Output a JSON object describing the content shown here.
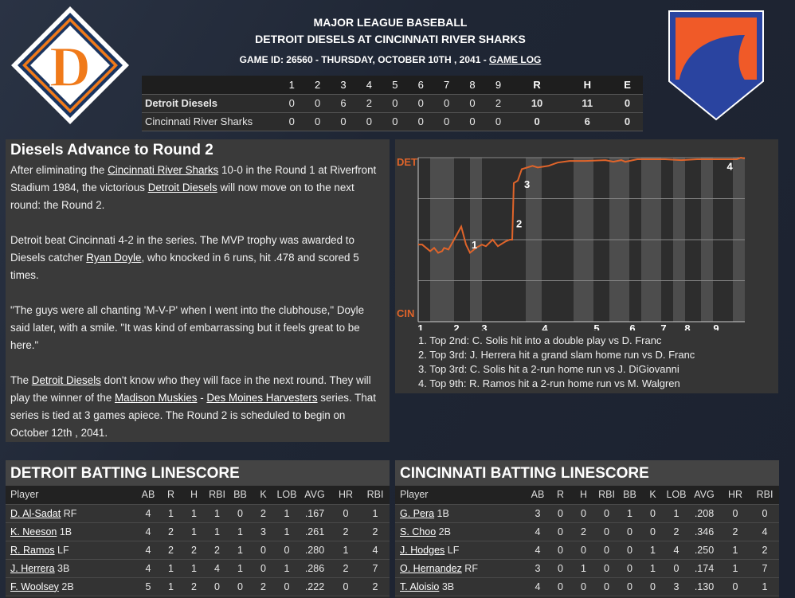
{
  "header": {
    "league": "MAJOR LEAGUE BASEBALL",
    "matchup": "DETROIT DIESELS AT CINCINNATI RIVER SHARKS",
    "game_info": "GAME ID: 26560 - THURSDAY, OCTOBER 10TH , 2041 - ",
    "game_log_link": "GAME LOG"
  },
  "logos": {
    "away": {
      "letter": "D",
      "colors": [
        "#f07a1a",
        "#1b3560",
        "#ffffff"
      ]
    },
    "home": {
      "colors": [
        "#f05a28",
        "#2a44a0",
        "#ffffff"
      ]
    }
  },
  "linescore": {
    "columns": [
      "1",
      "2",
      "3",
      "4",
      "5",
      "6",
      "7",
      "8",
      "9",
      "R",
      "H",
      "E"
    ],
    "rows": [
      {
        "team": "Detroit Diesels",
        "values": [
          "0",
          "0",
          "6",
          "2",
          "0",
          "0",
          "0",
          "0",
          "2",
          "10",
          "11",
          "0"
        ]
      },
      {
        "team": "Cincinnati River Sharks",
        "values": [
          "0",
          "0",
          "0",
          "0",
          "0",
          "0",
          "0",
          "0",
          "0",
          "0",
          "6",
          "0"
        ]
      }
    ]
  },
  "article": {
    "title": "Diesels Advance to Round 2",
    "paragraphs": [
      [
        {
          "text": "After eliminating the "
        },
        {
          "text": "Cincinnati River Sharks",
          "link": true
        },
        {
          "text": " 10-0 in the Round 1 at Riverfront Stadium 1984, the victorious "
        },
        {
          "text": "Detroit Diesels",
          "link": true
        },
        {
          "text": " will now move on to the next round: the Round 2."
        }
      ],
      [
        {
          "text": "Detroit beat Cincinnati 4-2 in the series. The MVP trophy was awarded to Diesels catcher "
        },
        {
          "text": "Ryan Doyle",
          "link": true
        },
        {
          "text": ", who knocked in 6 runs, hit .478 and scored 5 times."
        }
      ],
      [
        {
          "text": "\"The guys were all chanting 'M-V-P' when I went into the clubhouse,\" Doyle said later, with a smile. \"It was kind of embarrassing but it feels great to be here.\""
        }
      ],
      [
        {
          "text": "The "
        },
        {
          "text": "Detroit Diesels",
          "link": true
        },
        {
          "text": " don't know who they will face in the next round. They will play the winner of the "
        },
        {
          "text": "Madison Muskies",
          "link": true
        },
        {
          "text": " - "
        },
        {
          "text": "Des Moines Harvesters",
          "link": true
        },
        {
          "text": " series. That series is tied at 3 games apiece. The Round 2 is scheduled to begin on October 12th , 2041."
        }
      ]
    ]
  },
  "chart_data": {
    "type": "line",
    "top_label": "DET",
    "bottom_label": "CIN",
    "ylim": [
      0,
      1
    ],
    "xlim": [
      0,
      82
    ],
    "line_color": "#e0642a",
    "label_color": "#e0642a",
    "grid": true,
    "x_ticks": [
      {
        "label": "1",
        "x": 0.6
      },
      {
        "label": "2",
        "x": 9.6
      },
      {
        "label": "3",
        "x": 16.6
      },
      {
        "label": "4",
        "x": 31.8
      },
      {
        "label": "5",
        "x": 44.8
      },
      {
        "label": "6",
        "x": 53.8
      },
      {
        "label": "7",
        "x": 61.6
      },
      {
        "label": "8",
        "x": 67.6
      },
      {
        "label": "9",
        "x": 74.8
      }
    ],
    "series": [
      {
        "points": [
          [
            0,
            0.47
          ],
          [
            1,
            0.47
          ],
          [
            3,
            0.43
          ],
          [
            4,
            0.45
          ],
          [
            5,
            0.42
          ],
          [
            6,
            0.43
          ],
          [
            6.5,
            0.45
          ],
          [
            7.6,
            0.44
          ],
          [
            9,
            0.5
          ],
          [
            10.8,
            0.58
          ],
          [
            12,
            0.47
          ],
          [
            13,
            0.42
          ],
          [
            14.5,
            0.45
          ],
          [
            16,
            0.47
          ],
          [
            17,
            0.46
          ],
          [
            18.7,
            0.5
          ],
          [
            20,
            0.46
          ],
          [
            22,
            0.49
          ],
          [
            23,
            0.5
          ],
          [
            23.6,
            0.5
          ],
          [
            24,
            0.845
          ],
          [
            25,
            0.86
          ],
          [
            26,
            0.93
          ],
          [
            28.7,
            0.95
          ],
          [
            30,
            0.94
          ],
          [
            32.7,
            0.95
          ],
          [
            35,
            0.97
          ],
          [
            38,
            0.98
          ],
          [
            42,
            0.98
          ],
          [
            47,
            0.985
          ],
          [
            49,
            0.975
          ],
          [
            51,
            0.985
          ],
          [
            52,
            0.975
          ],
          [
            55,
            0.99
          ],
          [
            62,
            0.99
          ],
          [
            66,
            0.985
          ],
          [
            70,
            0.99
          ],
          [
            80,
            0.99
          ],
          [
            81,
            1.0
          ],
          [
            82,
            0.995
          ]
        ]
      }
    ],
    "annotations": [
      {
        "label": "1",
        "x": 13.4,
        "y": 0.47
      },
      {
        "label": "2",
        "x": 24.6,
        "y": 0.6
      },
      {
        "label": "3",
        "x": 26.6,
        "y": 0.84
      },
      {
        "label": "4",
        "x": 77.5,
        "y": 0.95
      }
    ],
    "notes": [
      "1. Top 2nd: C. Solis hit into a double play vs D. Franc",
      "2. Top 3rd: J. Herrera hit a grand slam home run vs D. Franc",
      "3. Top 3rd: C. Solis hit a 2-run home run vs J. DiGiovanni",
      "4. Top 9th: R. Ramos hit a 2-run home run vs M. Walgren"
    ]
  },
  "batting": [
    {
      "title": "DETROIT BATTING LINESCORE",
      "columns": [
        "Player",
        "AB",
        "R",
        "H",
        "RBI",
        "BB",
        "K",
        "LOB",
        "AVG",
        "HR",
        "RBI"
      ],
      "rows": [
        {
          "name": "D. Al-Sadat",
          "pos": " RF",
          "stats": [
            "4",
            "1",
            "1",
            "1",
            "0",
            "2",
            "1",
            ".167",
            "0",
            "1"
          ]
        },
        {
          "name": "K. Neeson",
          "pos": " 1B",
          "stats": [
            "4",
            "2",
            "1",
            "1",
            "1",
            "3",
            "1",
            ".261",
            "2",
            "2"
          ]
        },
        {
          "name": "R. Ramos",
          "pos": " LF",
          "stats": [
            "4",
            "2",
            "2",
            "2",
            "1",
            "0",
            "0",
            ".280",
            "1",
            "4"
          ]
        },
        {
          "name": "J. Herrera",
          "pos": " 3B",
          "stats": [
            "4",
            "1",
            "1",
            "4",
            "1",
            "0",
            "1",
            ".286",
            "2",
            "7"
          ]
        },
        {
          "name": "F. Woolsey",
          "pos": " 2B",
          "stats": [
            "5",
            "1",
            "2",
            "0",
            "0",
            "2",
            "0",
            ".222",
            "0",
            "2"
          ]
        }
      ]
    },
    {
      "title": "CINCINNATI BATTING LINESCORE",
      "columns": [
        "Player",
        "AB",
        "R",
        "H",
        "RBI",
        "BB",
        "K",
        "LOB",
        "AVG",
        "HR",
        "RBI"
      ],
      "rows": [
        {
          "name": "G. Pera",
          "pos": " 1B",
          "stats": [
            "3",
            "0",
            "0",
            "0",
            "1",
            "0",
            "1",
            ".208",
            "0",
            "0"
          ]
        },
        {
          "name": "S. Choo",
          "pos": " 2B",
          "stats": [
            "4",
            "0",
            "2",
            "0",
            "0",
            "0",
            "2",
            ".346",
            "2",
            "4"
          ]
        },
        {
          "name": "J. Hodges",
          "pos": " LF",
          "stats": [
            "4",
            "0",
            "0",
            "0",
            "0",
            "1",
            "4",
            ".250",
            "1",
            "2"
          ]
        },
        {
          "name": "O. Hernandez",
          "pos": " RF",
          "stats": [
            "3",
            "0",
            "1",
            "0",
            "0",
            "1",
            "0",
            ".174",
            "1",
            "7"
          ]
        },
        {
          "name": "T. Aloisio",
          "pos": " 3B",
          "stats": [
            "4",
            "0",
            "0",
            "0",
            "0",
            "0",
            "3",
            ".130",
            "0",
            "1"
          ]
        }
      ]
    }
  ]
}
